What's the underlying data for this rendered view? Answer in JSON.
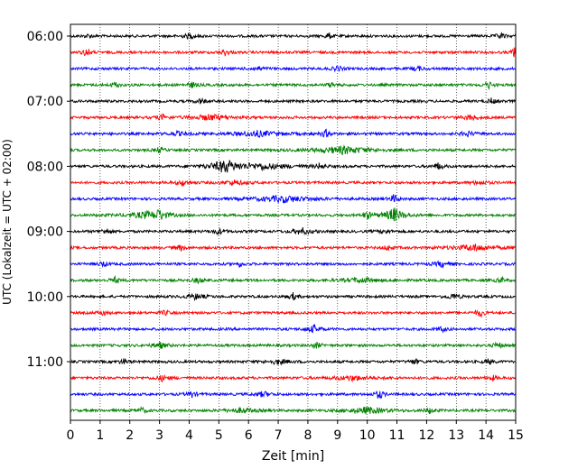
{
  "chart_data": {
    "type": "line",
    "title": "",
    "xlabel": "Zeit  [min]",
    "ylabel": "UTC (Lokalzeit = UTC + 02:00)",
    "xlim": [
      0,
      15
    ],
    "x_ticks": [
      "0",
      "1",
      "2",
      "3",
      "4",
      "5",
      "6",
      "7",
      "8",
      "9",
      "10",
      "11",
      "12",
      "13",
      "14",
      "15"
    ],
    "y_ticks": [
      "06:00",
      "07:00",
      "08:00",
      "09:00",
      "10:00",
      "11:00"
    ],
    "grid": "vertical dotted",
    "row_interval_min": 15,
    "trace_colors": [
      "#000000",
      "#ff0000",
      "#0000ff",
      "#008000"
    ],
    "series": [
      {
        "start": "06:00",
        "color": "#000000",
        "events": [
          [
            0.6,
            2.0,
            0.2
          ],
          [
            4.0,
            2.5,
            0.3
          ],
          [
            8.7,
            3.5,
            0.15
          ],
          [
            14.5,
            3.0,
            0.2
          ]
        ]
      },
      {
        "start": "06:15",
        "color": "#ff0000",
        "events": [
          [
            0.55,
            5.5,
            0.15
          ],
          [
            5.2,
            3.5,
            0.2
          ],
          [
            14.95,
            7.0,
            0.1
          ]
        ]
      },
      {
        "start": "06:30",
        "color": "#0000ff",
        "events": [
          [
            6.3,
            2.0,
            0.3
          ],
          [
            9.0,
            3.0,
            0.2
          ],
          [
            11.7,
            2.5,
            0.2
          ]
        ]
      },
      {
        "start": "06:45",
        "color": "#008000",
        "events": [
          [
            1.5,
            3.0,
            0.2
          ],
          [
            4.1,
            3.0,
            0.2
          ],
          [
            8.8,
            2.5,
            0.2
          ],
          [
            14.1,
            3.5,
            0.2
          ]
        ]
      },
      {
        "start": "07:00",
        "color": "#000000",
        "events": [
          [
            4.4,
            3.0,
            0.2
          ],
          [
            14.2,
            3.5,
            0.15
          ]
        ]
      },
      {
        "start": "07:15",
        "color": "#ff0000",
        "events": [
          [
            3.1,
            3.0,
            0.2
          ],
          [
            4.7,
            3.0,
            0.8
          ],
          [
            13.5,
            2.5,
            0.4
          ]
        ]
      },
      {
        "start": "07:30",
        "color": "#0000ff",
        "events": [
          [
            3.6,
            2.0,
            0.4
          ],
          [
            6.3,
            3.0,
            1.0
          ],
          [
            8.6,
            4.0,
            0.2
          ],
          [
            13.4,
            2.5,
            0.3
          ]
        ]
      },
      {
        "start": "07:45",
        "color": "#008000",
        "events": [
          [
            3.0,
            3.0,
            0.2
          ],
          [
            9.2,
            4.0,
            1.2
          ]
        ]
      },
      {
        "start": "08:00",
        "color": "#000000",
        "events": [
          [
            5.2,
            7.0,
            0.6
          ],
          [
            6.5,
            3.0,
            1.2
          ],
          [
            8.4,
            3.0,
            0.2
          ],
          [
            12.4,
            4.0,
            0.2
          ]
        ]
      },
      {
        "start": "08:15",
        "color": "#ff0000",
        "events": [
          [
            3.8,
            3.0,
            0.3
          ],
          [
            5.5,
            2.5,
            0.5
          ],
          [
            13.8,
            2.0,
            0.4
          ]
        ]
      },
      {
        "start": "08:30",
        "color": "#0000ff",
        "events": [
          [
            7.2,
            3.5,
            1.2
          ],
          [
            10.9,
            4.5,
            0.2
          ]
        ]
      },
      {
        "start": "08:45",
        "color": "#008000",
        "events": [
          [
            2.5,
            3.0,
            0.8
          ],
          [
            3.0,
            5.5,
            0.3
          ],
          [
            10.0,
            4.0,
            0.2
          ],
          [
            10.9,
            8.0,
            0.4
          ]
        ]
      },
      {
        "start": "09:00",
        "color": "#000000",
        "events": [
          [
            1.2,
            3.5,
            0.2
          ],
          [
            5.0,
            3.0,
            0.3
          ],
          [
            7.8,
            3.5,
            0.4
          ],
          [
            10.6,
            3.0,
            0.2
          ]
        ]
      },
      {
        "start": "09:15",
        "color": "#ff0000",
        "events": [
          [
            3.7,
            3.0,
            0.2
          ],
          [
            10.7,
            3.0,
            0.2
          ],
          [
            13.6,
            3.5,
            0.9
          ]
        ]
      },
      {
        "start": "09:30",
        "color": "#0000ff",
        "events": [
          [
            1.1,
            3.0,
            0.2
          ],
          [
            5.7,
            2.5,
            0.2
          ],
          [
            12.5,
            3.0,
            0.3
          ]
        ]
      },
      {
        "start": "09:45",
        "color": "#008000",
        "events": [
          [
            1.5,
            3.0,
            0.2
          ],
          [
            4.3,
            3.0,
            0.2
          ],
          [
            9.8,
            2.5,
            0.8
          ],
          [
            14.5,
            3.0,
            0.2
          ]
        ]
      },
      {
        "start": "10:00",
        "color": "#000000",
        "events": [
          [
            4.2,
            3.0,
            0.4
          ],
          [
            7.5,
            3.5,
            0.2
          ],
          [
            12.9,
            3.0,
            0.3
          ]
        ]
      },
      {
        "start": "10:15",
        "color": "#ff0000",
        "events": [
          [
            1.1,
            2.5,
            0.2
          ],
          [
            3.2,
            2.5,
            0.2
          ],
          [
            13.8,
            4.0,
            0.2
          ]
        ]
      },
      {
        "start": "10:30",
        "color": "#0000ff",
        "events": [
          [
            8.2,
            4.0,
            0.3
          ],
          [
            12.5,
            3.0,
            0.2
          ]
        ]
      },
      {
        "start": "10:45",
        "color": "#008000",
        "events": [
          [
            3.0,
            3.5,
            0.3
          ],
          [
            8.3,
            3.0,
            0.2
          ],
          [
            14.4,
            3.5,
            0.2
          ]
        ]
      },
      {
        "start": "11:00",
        "color": "#000000",
        "events": [
          [
            1.8,
            3.0,
            0.2
          ],
          [
            7.0,
            2.5,
            0.5
          ],
          [
            11.6,
            3.0,
            0.2
          ],
          [
            14.1,
            3.0,
            0.2
          ]
        ]
      },
      {
        "start": "11:15",
        "color": "#ff0000",
        "events": [
          [
            3.1,
            3.0,
            0.3
          ],
          [
            9.5,
            2.5,
            0.8
          ],
          [
            14.2,
            3.0,
            0.2
          ]
        ]
      },
      {
        "start": "11:30",
        "color": "#0000ff",
        "events": [
          [
            4.1,
            3.0,
            0.2
          ],
          [
            6.5,
            3.0,
            0.3
          ],
          [
            10.4,
            5.0,
            0.2
          ]
        ]
      },
      {
        "start": "11:45",
        "color": "#008000",
        "events": [
          [
            2.4,
            3.0,
            0.2
          ],
          [
            5.8,
            2.5,
            0.6
          ],
          [
            10.0,
            3.5,
            0.8
          ],
          [
            12.1,
            3.0,
            0.2
          ]
        ]
      }
    ]
  }
}
